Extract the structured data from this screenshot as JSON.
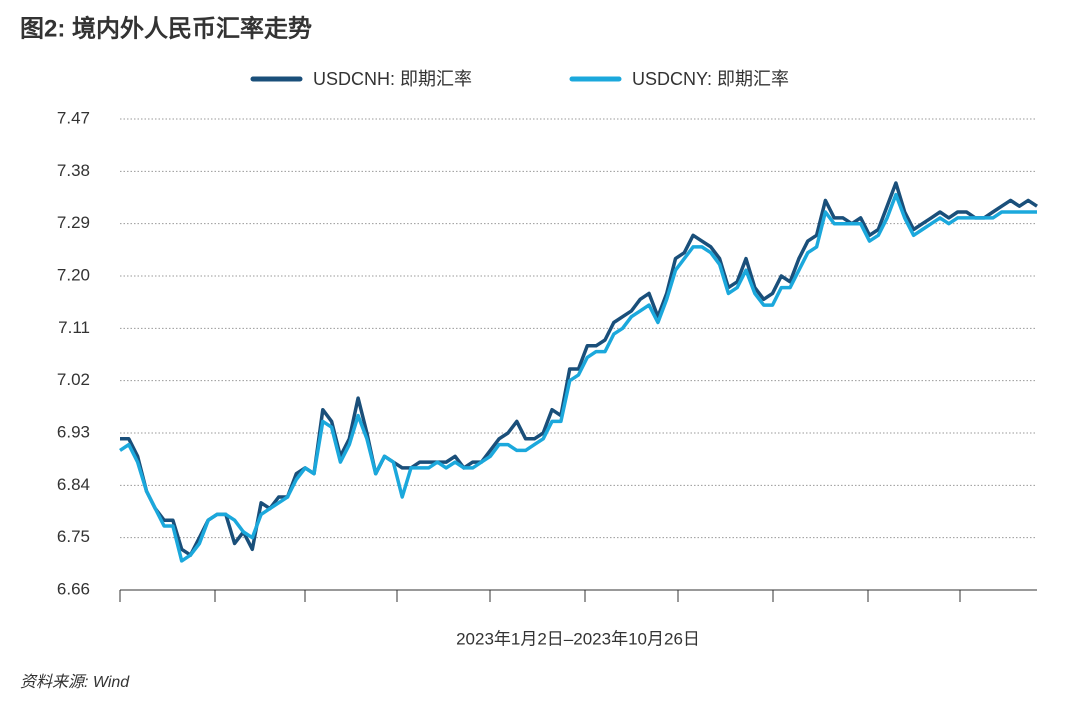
{
  "chart_data": {
    "type": "line",
    "title": "图2: 境内外人民币汇率走势",
    "xlabel": "2023年1月2日–2023年10月26日",
    "source": "资料来源: Wind",
    "categories": [
      null,
      null,
      null,
      null,
      null,
      null,
      null,
      null,
      null,
      null,
      null,
      null,
      null,
      null,
      null,
      null,
      null,
      null,
      null,
      null,
      null,
      null,
      null,
      null,
      null,
      null,
      null,
      null,
      null,
      null,
      null,
      null,
      null,
      null,
      null,
      null,
      null,
      null,
      null,
      null,
      null,
      null,
      null,
      null,
      null,
      null,
      null,
      null,
      null,
      null,
      null,
      null,
      null,
      null,
      null,
      null,
      null,
      null,
      null,
      null,
      null,
      null,
      null,
      null,
      null,
      null,
      null,
      null,
      null,
      null,
      null,
      null,
      null,
      null,
      null,
      null,
      null,
      null,
      null,
      null,
      null,
      null,
      null,
      null,
      null,
      null,
      null,
      null,
      null,
      null,
      null,
      null,
      null,
      null,
      null,
      null,
      null,
      null,
      null,
      null,
      null,
      null,
      null,
      null,
      null
    ],
    "series": [
      {
        "name": "USDCNH: 即期汇率",
        "color": "#1a4f7a",
        "values": [
          6.92,
          6.92,
          6.89,
          6.83,
          6.8,
          6.78,
          6.78,
          6.73,
          6.72,
          6.75,
          6.78,
          6.79,
          6.79,
          6.74,
          6.76,
          6.73,
          6.81,
          6.8,
          6.82,
          6.82,
          6.86,
          6.87,
          6.86,
          6.97,
          6.95,
          6.89,
          6.92,
          6.99,
          6.93,
          6.86,
          6.89,
          6.88,
          6.87,
          6.87,
          6.88,
          6.88,
          6.88,
          6.88,
          6.89,
          6.87,
          6.88,
          6.88,
          6.9,
          6.92,
          6.93,
          6.95,
          6.92,
          6.92,
          6.93,
          6.97,
          6.96,
          7.04,
          7.04,
          7.08,
          7.08,
          7.09,
          7.12,
          7.13,
          7.14,
          7.16,
          7.17,
          7.13,
          7.17,
          7.23,
          7.24,
          7.27,
          7.26,
          7.25,
          7.23,
          7.18,
          7.19,
          7.23,
          7.18,
          7.16,
          7.17,
          7.2,
          7.19,
          7.23,
          7.26,
          7.27,
          7.33,
          7.3,
          7.3,
          7.29,
          7.3,
          7.27,
          7.28,
          7.32,
          7.36,
          7.31,
          7.28,
          7.29,
          7.3,
          7.31,
          7.3,
          7.31,
          7.31,
          7.3,
          7.3,
          7.31,
          7.32,
          7.33,
          7.32,
          7.33,
          7.32
        ]
      },
      {
        "name": "USDCNY: 即期汇率",
        "color": "#1ba8dc",
        "values": [
          6.9,
          6.91,
          6.88,
          6.83,
          6.8,
          6.77,
          6.77,
          6.71,
          6.72,
          6.74,
          6.78,
          6.79,
          6.79,
          6.78,
          6.76,
          6.75,
          6.79,
          6.8,
          6.81,
          6.82,
          6.85,
          6.87,
          6.86,
          6.95,
          6.94,
          6.88,
          6.91,
          6.96,
          6.92,
          6.86,
          6.89,
          6.88,
          6.82,
          6.87,
          6.87,
          6.87,
          6.88,
          6.87,
          6.88,
          6.87,
          6.87,
          6.88,
          6.89,
          6.91,
          6.91,
          6.9,
          6.9,
          6.91,
          6.92,
          6.95,
          6.95,
          7.02,
          7.03,
          7.06,
          7.07,
          7.07,
          7.1,
          7.11,
          7.13,
          7.14,
          7.15,
          7.12,
          7.16,
          7.21,
          7.23,
          7.25,
          7.25,
          7.24,
          7.22,
          7.17,
          7.18,
          7.21,
          7.17,
          7.15,
          7.15,
          7.18,
          7.18,
          7.21,
          7.24,
          7.25,
          7.31,
          7.29,
          7.29,
          7.29,
          7.29,
          7.26,
          7.27,
          7.3,
          7.34,
          7.3,
          7.27,
          7.28,
          7.29,
          7.3,
          7.29,
          7.3,
          7.3,
          7.3,
          7.3,
          7.3,
          7.31,
          7.31,
          7.31,
          7.31,
          7.31
        ]
      }
    ],
    "ylim": [
      6.66,
      7.47
    ],
    "yticks": [
      6.66,
      6.75,
      6.84,
      6.93,
      7.02,
      7.11,
      {
        "value": 7.2,
        "label": "7.20"
      },
      7.29,
      7.38,
      7.47
    ],
    "grid": true,
    "legend": "top"
  }
}
